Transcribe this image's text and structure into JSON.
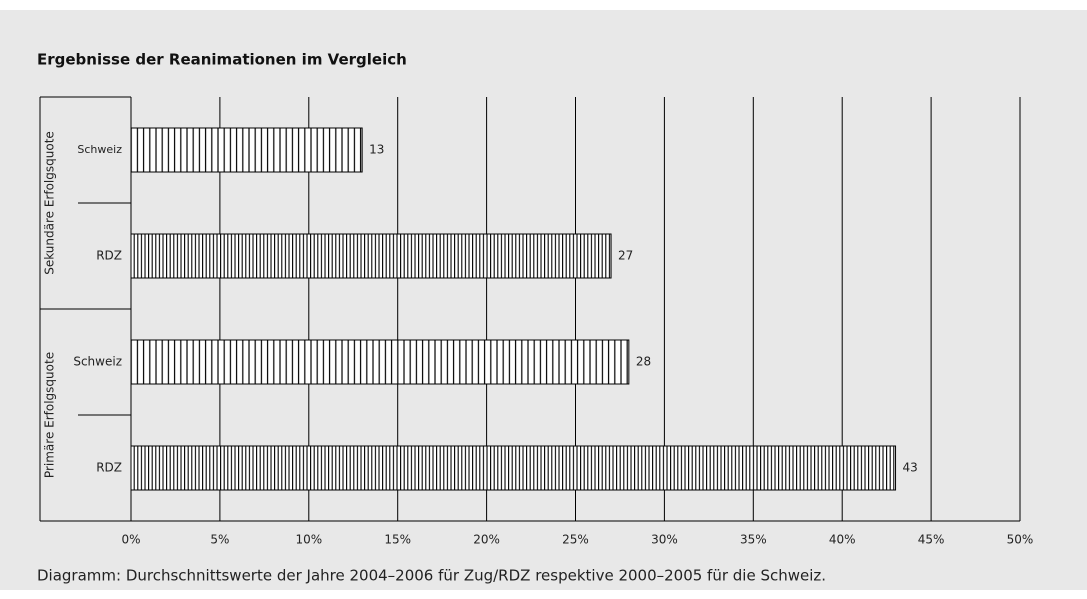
{
  "chart_data": {
    "type": "bar",
    "orientation": "horizontal",
    "title": "Ergebnisse der Reanimationen im Vergleich",
    "caption": "Diagramm: Durchschnittswerte der Jahre 2004–2006 für Zug/RDZ respektive 2000–2005 für die Schweiz.",
    "groups": [
      {
        "name": "Sekundäre Erfolgsquote",
        "categories": [
          "Schweiz",
          "RDZ"
        ],
        "values": [
          13,
          27
        ],
        "hatch": [
          "sparse",
          "dense"
        ]
      },
      {
        "name": "Primäre Erfolgsquote",
        "categories": [
          "Schweiz",
          "RDZ"
        ],
        "values": [
          28,
          43
        ],
        "hatch": [
          "sparse",
          "dense"
        ]
      }
    ],
    "xlim": [
      0,
      50
    ],
    "xticks": [
      {
        "value": 0,
        "label": "0%"
      },
      {
        "value": 5,
        "label": "5%"
      },
      {
        "value": 10,
        "label": "10%"
      },
      {
        "value": 15,
        "label": "15%"
      },
      {
        "value": 20,
        "label": "20%"
      },
      {
        "value": 25,
        "label": "25%"
      },
      {
        "value": 30,
        "label": "30%"
      },
      {
        "value": 35,
        "label": "35%"
      },
      {
        "value": 40,
        "label": "40%"
      },
      {
        "value": 45,
        "label": "45%"
      },
      {
        "value": 50,
        "label": "50%"
      }
    ],
    "grid": true,
    "color": "#000000"
  }
}
